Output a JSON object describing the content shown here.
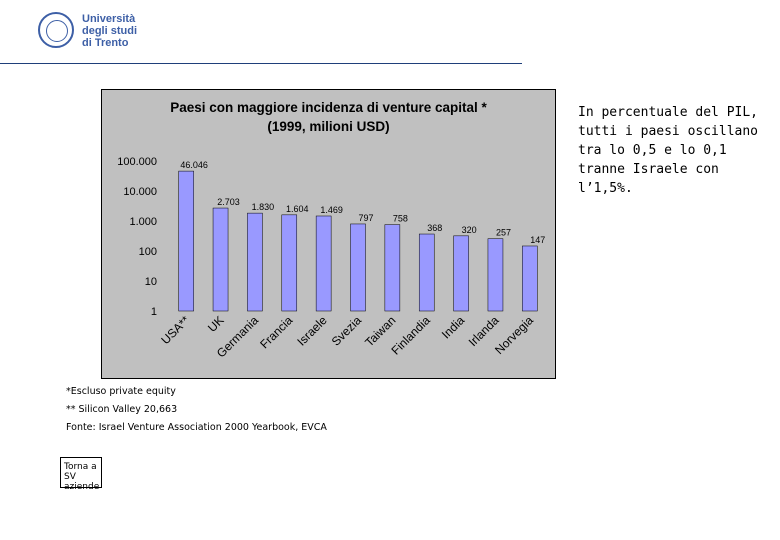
{
  "header": {
    "logo_lines": [
      "Università",
      "degli studi",
      "di Trento"
    ]
  },
  "chart_data": {
    "type": "bar",
    "title_line1": "Paesi con maggiore incidenza di venture capital *",
    "title_line2": "(1999, milioni USD)",
    "yscale": "log",
    "ylim": [
      1,
      100000
    ],
    "ytick_labels": [
      "100.000",
      "10.000",
      "1.000",
      "100",
      "10",
      "1"
    ],
    "ytick_values": [
      100000,
      10000,
      1000,
      100,
      10,
      1
    ],
    "categories": [
      "USA**",
      "UK",
      "Germania",
      "Francia",
      "Israele",
      "Svezia",
      "Taiwan",
      "Finlandia",
      "India",
      "Irlanda",
      "Norvegia"
    ],
    "values": [
      46046,
      2703,
      1830,
      1604,
      1469,
      797,
      758,
      368,
      320,
      257,
      147
    ],
    "value_labels": [
      "46.046",
      "2.703",
      "1.830",
      "1.604",
      "1.469",
      "797",
      "758",
      "368",
      "320",
      "257",
      "147"
    ],
    "bar_color": "#9999ff",
    "grid": false
  },
  "side_text": "In percentuale del PIL, tutti i paesi oscillano tra lo 0,5 e lo 0,1 tranne Israele con l’1,5%.",
  "notes": {
    "note1": "*Escluso private equity",
    "note2": "** Silicon Valley 20,663",
    "source": "Fonte: Israel Venture Association 2000 Yearbook, EVCA"
  },
  "back_button": "Torna a SV aziende"
}
